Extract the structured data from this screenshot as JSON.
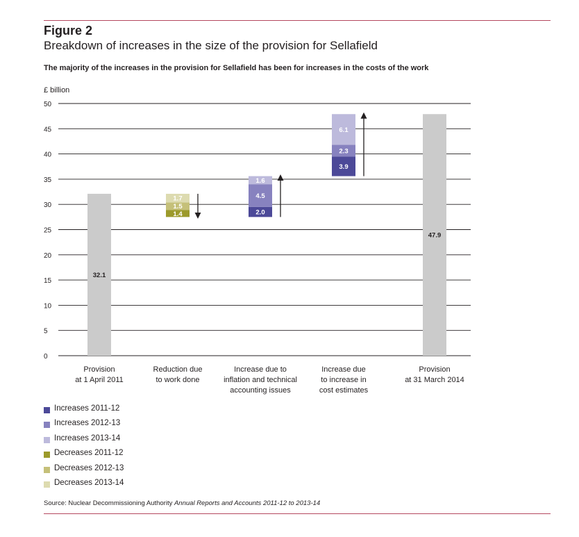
{
  "header": {
    "figure_label": "Figure 2",
    "title": "Breakdown of increases in the size of the provision for Sellafield",
    "subtitle": "The majority of the increases in the provision for Sellafield has been for increases in the costs of the work"
  },
  "colors": {
    "accent_rule": "#b5485f",
    "gray_bar": "#cbcbcb",
    "inc_2011_12": "#4c4998",
    "inc_2012_13": "#8782bf",
    "inc_2013_14": "#bdbadc",
    "dec_2011_12": "#9c9a2b",
    "dec_2012_13": "#c5c079",
    "dec_2013_14": "#dddbb0"
  },
  "chart_data": {
    "type": "bar",
    "subtype": "waterfall",
    "ylabel": "£ billion",
    "ylim": [
      0,
      50
    ],
    "yticks": [
      0,
      5,
      10,
      15,
      20,
      25,
      30,
      35,
      40,
      45,
      50
    ],
    "grid": true,
    "categories": [
      "Provision\nat 1 April 2011",
      "Reduction due\nto work done",
      "Increase due to\ninflation and technical\naccounting issues",
      "Increase due\nto increase in\ncost estimates",
      "Provision\nat 31 March 2014"
    ],
    "bars": [
      {
        "category_index": 0,
        "segments": [
          {
            "from": 0,
            "to": 32.1,
            "value": 32.1,
            "label": "32.1",
            "color_key": "gray_bar"
          }
        ]
      },
      {
        "category_index": 1,
        "arrow": "down",
        "segments": [
          {
            "from": 27.5,
            "to": 28.9,
            "value": 1.4,
            "label": "1.4",
            "color_key": "dec_2011_12"
          },
          {
            "from": 28.9,
            "to": 30.4,
            "value": 1.5,
            "label": "1.5",
            "color_key": "dec_2012_13"
          },
          {
            "from": 30.4,
            "to": 32.1,
            "value": 1.7,
            "label": "1.7",
            "color_key": "dec_2013_14"
          }
        ]
      },
      {
        "category_index": 2,
        "arrow": "up",
        "segments": [
          {
            "from": 27.5,
            "to": 29.5,
            "value": 2.0,
            "label": "2.0",
            "color_key": "inc_2011_12"
          },
          {
            "from": 29.5,
            "to": 34.0,
            "value": 4.5,
            "label": "4.5",
            "color_key": "inc_2012_13"
          },
          {
            "from": 34.0,
            "to": 35.6,
            "value": 1.6,
            "label": "1.6",
            "color_key": "inc_2013_14"
          }
        ]
      },
      {
        "category_index": 3,
        "arrow": "up",
        "segments": [
          {
            "from": 35.6,
            "to": 39.5,
            "value": 3.9,
            "label": "3.9",
            "color_key": "inc_2011_12"
          },
          {
            "from": 39.5,
            "to": 41.8,
            "value": 2.3,
            "label": "2.3",
            "color_key": "inc_2012_13"
          },
          {
            "from": 41.8,
            "to": 47.9,
            "value": 6.1,
            "label": "6.1",
            "color_key": "inc_2013_14"
          }
        ]
      },
      {
        "category_index": 4,
        "segments": [
          {
            "from": 0,
            "to": 47.9,
            "value": 47.9,
            "label": "47.9",
            "color_key": "gray_bar"
          }
        ]
      }
    ],
    "legend": [
      {
        "label": "Increases 2011-12",
        "color_key": "inc_2011_12"
      },
      {
        "label": "Increases 2012-13",
        "color_key": "inc_2012_13"
      },
      {
        "label": "Increases 2013-14",
        "color_key": "inc_2013_14"
      },
      {
        "label": "Decreases 2011-12",
        "color_key": "dec_2011_12"
      },
      {
        "label": "Decreases 2012-13",
        "color_key": "dec_2012_13"
      },
      {
        "label": "Decreases 2013-14",
        "color_key": "dec_2013_14"
      }
    ],
    "legend_position": "bottom-left"
  },
  "source": {
    "prefix": "Source: Nuclear Decommissioning Authority ",
    "italic": "Annual Reports and Accounts 2011-12 to 2013-14"
  }
}
